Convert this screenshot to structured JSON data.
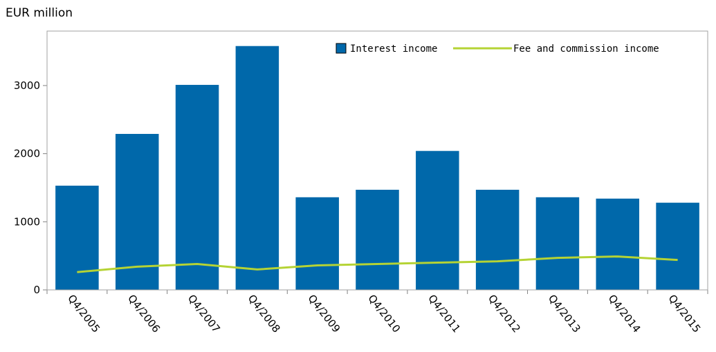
{
  "chart_data": {
    "type": "bar",
    "unit_label": "EUR million",
    "title": "",
    "xlabel": "",
    "ylabel": "",
    "categories": [
      "Q4/2005",
      "Q4/2006",
      "Q4/2007",
      "Q4/2008",
      "Q4/2009",
      "Q4/2010",
      "Q4/2011",
      "Q4/2012",
      "Q4/2013",
      "Q4/2014",
      "Q4/2015"
    ],
    "ylim": [
      0,
      3800
    ],
    "yticks": [
      0,
      1000,
      2000,
      3000
    ],
    "grid": false,
    "legend_position": "top-right",
    "series": [
      {
        "name": "Interest income",
        "type": "bar",
        "color": "#0068aa",
        "values": [
          1530,
          2290,
          3010,
          3580,
          1360,
          1470,
          2040,
          1470,
          1360,
          1340,
          1280
        ]
      },
      {
        "name": "Fee and commission income",
        "type": "line",
        "color": "#b5d334",
        "values": [
          260,
          340,
          380,
          300,
          360,
          380,
          400,
          420,
          470,
          490,
          440
        ]
      }
    ]
  }
}
